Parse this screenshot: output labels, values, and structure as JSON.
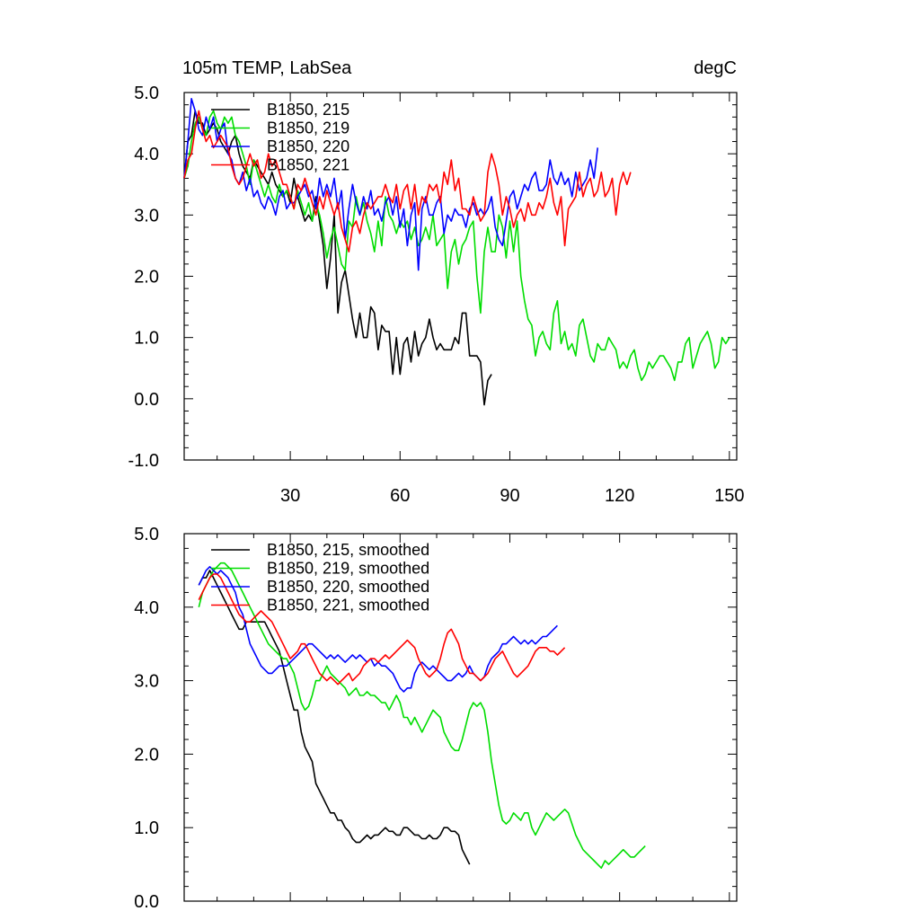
{
  "chart_data": [
    {
      "type": "line",
      "title": "105m TEMP, LabSea",
      "units": "degC",
      "xlim": [
        1,
        152
      ],
      "ylim": [
        -1,
        5
      ],
      "xticks": [
        30,
        60,
        90,
        120,
        150
      ],
      "xtick_labels": [
        "30",
        "60",
        "90",
        "120",
        "150"
      ],
      "yticks": [
        -1,
        0,
        1,
        2,
        3,
        4,
        5
      ],
      "ytick_labels": [
        "-1.0",
        "0.0",
        "1.0",
        "2.0",
        "3.0",
        "4.0",
        "5.0"
      ],
      "legend_position": "top-left",
      "series": [
        {
          "name": "B1850, 215",
          "color": "#000000",
          "x_start": 1,
          "values": [
            3.6,
            4.2,
            4.3,
            4.7,
            4.5,
            4.5,
            4.3,
            4.4,
            4.5,
            4.4,
            4.2,
            4.1,
            4.0,
            4.2,
            4.3,
            4.0,
            3.8,
            3.7,
            3.6,
            3.9,
            3.8,
            3.7,
            3.6,
            3.5,
            3.7,
            3.5,
            3.4,
            3.3,
            3.4,
            3.2,
            3.6,
            3.3,
            3.1,
            2.9,
            3.0,
            2.9,
            3.3,
            2.9,
            2.5,
            1.8,
            2.3,
            3.0,
            1.4,
            1.9,
            2.1,
            1.7,
            1.3,
            1.0,
            1.4,
            1.0,
            1.0,
            1.5,
            1.4,
            0.8,
            1.2,
            1.1,
            1.1,
            0.4,
            1.0,
            0.4,
            0.9,
            1.0,
            0.6,
            1.1,
            0.7,
            0.9,
            1.0,
            1.3,
            1.0,
            0.8,
            0.9,
            0.8,
            0.8,
            0.8,
            1.0,
            0.9,
            1.4,
            1.4,
            0.7,
            0.7,
            0.7,
            0.6,
            -0.1,
            0.3,
            0.4
          ]
        },
        {
          "name": "B1850, 219",
          "color": "#00dd00",
          "x_start": 1,
          "values": [
            3.6,
            3.8,
            4.2,
            4.5,
            4.6,
            4.4,
            4.3,
            4.6,
            4.7,
            4.5,
            4.4,
            4.6,
            4.5,
            4.6,
            4.3,
            4.2,
            4.0,
            3.8,
            3.5,
            3.9,
            3.7,
            3.5,
            3.3,
            3.5,
            3.3,
            3.2,
            3.5,
            3.3,
            3.4,
            3.3,
            3.1,
            3.4,
            3.2,
            3.0,
            3.2,
            2.9,
            3.2,
            3.0,
            2.7,
            2.3,
            2.6,
            2.8,
            2.5,
            2.2,
            2.1,
            2.9,
            2.8,
            3.3,
            3.0,
            3.2,
            2.9,
            2.7,
            2.4,
            2.9,
            2.5,
            3.3,
            3.0,
            2.9,
            2.7,
            2.9,
            2.8,
            2.9,
            2.6,
            2.8,
            2.5,
            2.6,
            2.8,
            2.6,
            3.0,
            2.5,
            2.6,
            2.7,
            1.8,
            2.4,
            2.6,
            2.2,
            2.5,
            2.6,
            2.8,
            2.9,
            2.0,
            1.4,
            2.4,
            2.8,
            2.4,
            2.4,
            3.0,
            2.8,
            2.3,
            2.9,
            2.4,
            2.9,
            2.0,
            1.6,
            1.3,
            1.2,
            0.7,
            1.0,
            1.1,
            0.9,
            0.8,
            1.4,
            1.6,
            0.9,
            1.1,
            0.8,
            0.9,
            0.7,
            1.2,
            1.3,
            1.0,
            0.7,
            0.6,
            0.9,
            0.8,
            0.8,
            1.0,
            0.9,
            0.8,
            0.5,
            0.6,
            0.5,
            0.7,
            0.8,
            0.5,
            0.3,
            0.4,
            0.6,
            0.5,
            0.6,
            0.7,
            0.7,
            0.6,
            0.5,
            0.3,
            0.6,
            0.6,
            0.9,
            1.0,
            0.5,
            0.7,
            0.9,
            1.0,
            1.1,
            0.9,
            0.5,
            0.6,
            1.0,
            0.9,
            1.0
          ]
        },
        {
          "name": "B1850, 220",
          "color": "#0000ff",
          "x_start": 1,
          "values": [
            3.6,
            4.2,
            4.9,
            4.7,
            4.4,
            4.3,
            4.6,
            4.4,
            4.6,
            4.2,
            4.4,
            4.5,
            4.0,
            3.9,
            3.6,
            3.5,
            3.7,
            3.4,
            3.6,
            3.3,
            3.4,
            3.2,
            3.1,
            3.3,
            3.2,
            3.0,
            3.3,
            3.4,
            3.1,
            3.2,
            3.2,
            3.3,
            3.4,
            3.5,
            3.3,
            3.4,
            3.1,
            3.6,
            3.3,
            3.5,
            3.3,
            3.6,
            3.1,
            3.4,
            2.6,
            3.1,
            3.5,
            3.2,
            3.0,
            3.3,
            3.1,
            3.4,
            3.0,
            3.1,
            2.9,
            3.2,
            3.3,
            3.0,
            3.3,
            2.8,
            3.1,
            2.5,
            3.0,
            3.2,
            2.1,
            3.1,
            3.3,
            3.0,
            3.0,
            3.2,
            3.3,
            2.7,
            3.0,
            2.9,
            3.1,
            3.0,
            3.0,
            2.8,
            3.1,
            3.2,
            3.0,
            3.1,
            3.0,
            3.1,
            3.3,
            2.8,
            2.6,
            2.5,
            2.9,
            3.3,
            3.4,
            3.1,
            3.3,
            3.5,
            3.4,
            3.6,
            3.7,
            3.4,
            3.4,
            3.5,
            3.9,
            3.6,
            3.5,
            3.7,
            3.5,
            3.6,
            3.3,
            3.7,
            3.4,
            3.5,
            3.6,
            3.9,
            3.6,
            4.1
          ]
        },
        {
          "name": "B1850, 221",
          "color": "#ff0000",
          "x_start": 1,
          "values": [
            3.6,
            3.9,
            4.0,
            4.4,
            4.7,
            4.4,
            4.2,
            4.3,
            4.1,
            4.2,
            4.3,
            4.2,
            4.1,
            3.8,
            3.6,
            3.5,
            3.6,
            3.8,
            4.0,
            3.8,
            3.9,
            3.6,
            3.7,
            4.0,
            3.8,
            3.9,
            3.7,
            3.5,
            3.5,
            3.3,
            3.1,
            3.5,
            3.4,
            3.6,
            3.4,
            3.2,
            3.0,
            3.3,
            3.1,
            3.4,
            3.2,
            3.0,
            3.2,
            2.8,
            2.6,
            2.4,
            2.8,
            2.9,
            2.7,
            3.0,
            3.2,
            3.1,
            3.2,
            3.3,
            3.3,
            3.5,
            3.3,
            3.2,
            3.5,
            3.1,
            3.4,
            3.5,
            3.1,
            3.5,
            3.0,
            3.3,
            3.2,
            3.5,
            3.4,
            3.5,
            3.2,
            3.7,
            3.5,
            3.9,
            3.4,
            3.6,
            3.1,
            3.1,
            3.0,
            3.3,
            3.1,
            2.9,
            3.0,
            3.7,
            4.0,
            3.8,
            3.5,
            3.0,
            3.3,
            3.1,
            2.8,
            3.0,
            3.1,
            2.9,
            3.2,
            3.0,
            3.0,
            3.2,
            3.1,
            3.3,
            3.6,
            3.2,
            3.0,
            3.3,
            2.5,
            3.1,
            3.2,
            3.3,
            3.7,
            3.3,
            3.5,
            3.6,
            3.3,
            3.4,
            3.7,
            3.3,
            3.4,
            3.6,
            3.0,
            3.5,
            3.7,
            3.5,
            3.7
          ]
        }
      ]
    },
    {
      "type": "line",
      "xlim": [
        1,
        152
      ],
      "ylim": [
        0,
        5
      ],
      "xticks": [
        30,
        60,
        90,
        120,
        150
      ],
      "yticks": [
        0,
        1,
        2,
        3,
        4,
        5
      ],
      "ytick_labels": [
        "0.0",
        "1.0",
        "2.0",
        "3.0",
        "4.0",
        "5.0"
      ],
      "legend_position": "top-left",
      "series": [
        {
          "name": "B1850, 215, smoothed",
          "color": "#000000",
          "x_start": 5,
          "values": [
            4.3,
            4.4,
            4.4,
            4.5,
            4.4,
            4.3,
            4.2,
            4.1,
            4.0,
            3.9,
            3.8,
            3.7,
            3.7,
            3.8,
            3.8,
            3.8,
            3.8,
            3.8,
            3.8,
            3.7,
            3.6,
            3.5,
            3.4,
            3.2,
            3.0,
            2.8,
            2.6,
            2.6,
            2.3,
            2.1,
            2.0,
            1.9,
            1.6,
            1.5,
            1.4,
            1.3,
            1.2,
            1.2,
            1.1,
            1.1,
            1.0,
            0.95,
            0.85,
            0.8,
            0.8,
            0.85,
            0.9,
            0.85,
            0.9,
            0.9,
            0.95,
            1.0,
            0.95,
            0.95,
            0.9,
            0.9,
            1.0,
            1.0,
            0.95,
            0.9,
            0.9,
            0.85,
            0.85,
            0.9,
            0.85,
            0.85,
            0.9,
            1.0,
            1.0,
            0.95,
            0.95,
            0.9,
            0.7,
            0.6,
            0.5
          ]
        },
        {
          "name": "B1850, 219, smoothed",
          "color": "#00dd00",
          "x_start": 5,
          "values": [
            4.0,
            4.2,
            4.3,
            4.4,
            4.5,
            4.55,
            4.6,
            4.6,
            4.55,
            4.5,
            4.4,
            4.3,
            4.2,
            4.1,
            4.0,
            3.9,
            3.8,
            3.7,
            3.6,
            3.5,
            3.45,
            3.4,
            3.35,
            3.3,
            3.3,
            3.2,
            3.1,
            2.9,
            2.7,
            2.6,
            2.65,
            2.8,
            3.0,
            3.0,
            3.1,
            3.2,
            3.1,
            3.05,
            3.0,
            2.95,
            2.9,
            2.8,
            2.85,
            2.9,
            2.8,
            2.8,
            2.85,
            2.8,
            2.8,
            2.75,
            2.7,
            2.7,
            2.6,
            2.7,
            2.8,
            2.7,
            2.5,
            2.5,
            2.4,
            2.5,
            2.4,
            2.3,
            2.4,
            2.5,
            2.6,
            2.55,
            2.5,
            2.3,
            2.2,
            2.1,
            2.05,
            2.05,
            2.2,
            2.4,
            2.6,
            2.7,
            2.65,
            2.7,
            2.6,
            2.3,
            1.9,
            1.6,
            1.3,
            1.1,
            1.05,
            1.1,
            1.2,
            1.15,
            1.1,
            1.2,
            1.2,
            1.0,
            0.9,
            1.0,
            1.1,
            1.2,
            1.15,
            1.1,
            1.15,
            1.2,
            1.25,
            1.2,
            1.05,
            0.9,
            0.8,
            0.7,
            0.65,
            0.6,
            0.55,
            0.5,
            0.45,
            0.55,
            0.5,
            0.55,
            0.6,
            0.65,
            0.7,
            0.65,
            0.6,
            0.6,
            0.65,
            0.7,
            0.75
          ]
        },
        {
          "name": "B1850, 220, smoothed",
          "color": "#0000ff",
          "x_start": 5,
          "values": [
            4.3,
            4.4,
            4.5,
            4.55,
            4.5,
            4.45,
            4.5,
            4.45,
            4.4,
            4.3,
            4.2,
            4.0,
            3.9,
            3.7,
            3.5,
            3.4,
            3.3,
            3.2,
            3.15,
            3.1,
            3.1,
            3.15,
            3.2,
            3.2,
            3.2,
            3.25,
            3.3,
            3.35,
            3.4,
            3.45,
            3.5,
            3.5,
            3.45,
            3.4,
            3.35,
            3.3,
            3.35,
            3.3,
            3.35,
            3.3,
            3.25,
            3.3,
            3.35,
            3.3,
            3.35,
            3.3,
            3.25,
            3.3,
            3.2,
            3.25,
            3.2,
            3.2,
            3.15,
            3.1,
            3.0,
            2.9,
            2.85,
            2.9,
            2.9,
            3.1,
            3.2,
            3.25,
            3.2,
            3.15,
            3.2,
            3.15,
            3.1,
            3.05,
            3.0,
            3.0,
            3.05,
            3.1,
            3.05,
            3.1,
            3.2,
            3.1,
            3.05,
            3.0,
            3.05,
            3.2,
            3.3,
            3.35,
            3.4,
            3.5,
            3.5,
            3.55,
            3.6,
            3.55,
            3.5,
            3.55,
            3.5,
            3.55,
            3.5,
            3.55,
            3.6,
            3.6,
            3.65,
            3.7,
            3.75
          ]
        },
        {
          "name": "B1850, 221, smoothed",
          "color": "#ff0000",
          "x_start": 5,
          "values": [
            4.1,
            4.2,
            4.3,
            4.4,
            4.45,
            4.45,
            4.4,
            4.3,
            4.2,
            4.1,
            4.0,
            3.9,
            3.85,
            3.8,
            3.8,
            3.85,
            3.9,
            3.95,
            3.9,
            3.85,
            3.8,
            3.7,
            3.6,
            3.5,
            3.4,
            3.3,
            3.35,
            3.4,
            3.5,
            3.5,
            3.4,
            3.3,
            3.2,
            3.1,
            3.05,
            3.0,
            3.05,
            3.0,
            2.95,
            3.0,
            3.05,
            3.1,
            3.0,
            3.05,
            3.1,
            3.2,
            3.25,
            3.3,
            3.3,
            3.25,
            3.3,
            3.35,
            3.3,
            3.35,
            3.4,
            3.45,
            3.5,
            3.55,
            3.5,
            3.45,
            3.3,
            3.2,
            3.1,
            3.05,
            3.1,
            3.15,
            3.3,
            3.5,
            3.65,
            3.7,
            3.6,
            3.5,
            3.3,
            3.2,
            3.1,
            3.1,
            3.05,
            3.0,
            3.05,
            3.1,
            3.2,
            3.3,
            3.35,
            3.4,
            3.3,
            3.2,
            3.1,
            3.05,
            3.1,
            3.15,
            3.2,
            3.3,
            3.4,
            3.45,
            3.45,
            3.45,
            3.4,
            3.4,
            3.35,
            3.4,
            3.45
          ]
        }
      ]
    }
  ]
}
